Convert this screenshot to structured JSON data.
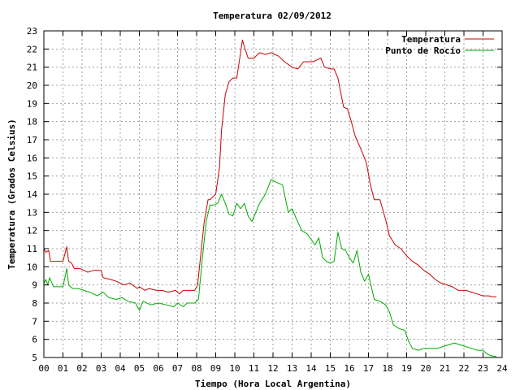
{
  "chart_data": {
    "type": "line",
    "title": "Temperatura 02/09/2012",
    "xlabel": "Tiempo (Hora Local Argentina)",
    "ylabel": "Temperatura (Grados Celsius)",
    "xlim": [
      0,
      24
    ],
    "ylim": [
      5,
      23
    ],
    "x_ticks": [
      0,
      1,
      2,
      3,
      4,
      5,
      6,
      7,
      8,
      9,
      10,
      11,
      12,
      13,
      14,
      15,
      16,
      17,
      18,
      19,
      20,
      21,
      22,
      23,
      24
    ],
    "x_tick_labels": [
      "00",
      "01",
      "02",
      "03",
      "04",
      "05",
      "06",
      "07",
      "08",
      "09",
      "10",
      "11",
      "12",
      "13",
      "14",
      "15",
      "16",
      "17",
      "18",
      "19",
      "20",
      "21",
      "22",
      "23",
      "24"
    ],
    "y_ticks": [
      5,
      6,
      7,
      8,
      9,
      10,
      11,
      12,
      13,
      14,
      15,
      16,
      17,
      18,
      19,
      20,
      21,
      22,
      23
    ],
    "grid": true,
    "legend_position": "top-right",
    "series": [
      {
        "name": "Temperatura",
        "color": "#cc0000",
        "x": [
          0,
          0.1,
          0.25,
          0.35,
          0.45,
          1.0,
          1.2,
          1.3,
          1.45,
          1.6,
          1.9,
          2.1,
          2.3,
          2.6,
          3.0,
          3.1,
          3.5,
          3.8,
          4.2,
          4.5,
          4.9,
          5.0,
          5.3,
          5.5,
          5.9,
          6.2,
          6.5,
          6.9,
          7.1,
          7.3,
          7.5,
          7.9,
          8.05,
          8.2,
          8.4,
          8.6,
          8.7,
          9.0,
          9.2,
          9.3,
          9.5,
          9.7,
          9.9,
          10.1,
          10.3,
          10.4,
          10.5,
          10.7,
          11.0,
          11.3,
          11.6,
          11.9,
          12.1,
          12.3,
          12.6,
          13.0,
          13.3,
          13.6,
          13.9,
          14.1,
          14.3,
          14.5,
          14.7,
          15.0,
          15.2,
          15.4,
          15.7,
          15.9,
          16.1,
          16.3,
          16.6,
          16.9,
          17.1,
          17.3,
          17.6,
          17.9,
          18.1,
          18.4,
          18.7,
          19.0,
          19.3,
          19.6,
          19.9,
          20.2,
          20.5,
          20.8,
          21.1,
          21.4,
          21.7,
          22.1,
          22.4,
          22.7,
          23.0,
          23.3,
          23.5,
          23.7
        ],
        "y": [
          11.0,
          10.8,
          10.9,
          10.3,
          10.3,
          10.3,
          11.1,
          10.3,
          10.2,
          9.9,
          9.9,
          9.8,
          9.7,
          9.8,
          9.8,
          9.4,
          9.3,
          9.2,
          9.0,
          9.1,
          8.8,
          8.9,
          8.7,
          8.8,
          8.7,
          8.7,
          8.6,
          8.7,
          8.5,
          8.7,
          8.7,
          8.7,
          9.0,
          10.5,
          12.5,
          13.7,
          13.7,
          14.0,
          15.5,
          17.5,
          19.5,
          20.2,
          20.4,
          20.4,
          21.8,
          22.5,
          22.1,
          21.5,
          21.5,
          21.8,
          21.7,
          21.8,
          21.7,
          21.6,
          21.3,
          21.0,
          20.9,
          21.3,
          21.3,
          21.3,
          21.4,
          21.5,
          21.0,
          20.9,
          20.9,
          20.4,
          18.8,
          18.7,
          18.0,
          17.2,
          16.5,
          15.7,
          14.5,
          13.7,
          13.7,
          12.6,
          11.7,
          11.2,
          11.0,
          10.6,
          10.3,
          10.1,
          9.8,
          9.6,
          9.3,
          9.1,
          9.0,
          8.9,
          8.7,
          8.7,
          8.6,
          8.5,
          8.4,
          8.4,
          8.35,
          8.35
        ]
      },
      {
        "name": "Punto de Rocío",
        "color": "#00aa00",
        "x": [
          0,
          0.1,
          0.2,
          0.3,
          0.5,
          1.0,
          1.2,
          1.3,
          1.5,
          1.8,
          2.1,
          2.4,
          2.8,
          3.1,
          3.4,
          3.8,
          4.1,
          4.4,
          4.8,
          5.0,
          5.2,
          5.6,
          6.0,
          6.4,
          6.8,
          7.0,
          7.3,
          7.5,
          7.9,
          8.1,
          8.3,
          8.5,
          8.7,
          8.9,
          9.1,
          9.3,
          9.5,
          9.7,
          9.9,
          10.1,
          10.3,
          10.5,
          10.7,
          10.9,
          11.1,
          11.3,
          11.6,
          11.9,
          12.1,
          12.3,
          12.5,
          12.8,
          13.0,
          13.2,
          13.5,
          13.8,
          14.0,
          14.2,
          14.4,
          14.6,
          14.8,
          15.0,
          15.2,
          15.4,
          15.6,
          15.8,
          16.0,
          16.2,
          16.4,
          16.6,
          16.8,
          17.0,
          17.3,
          17.6,
          17.9,
          18.1,
          18.3,
          18.6,
          18.9,
          19.1,
          19.3,
          19.6,
          19.9,
          20.2,
          20.6,
          20.9,
          21.2,
          21.5,
          21.8,
          22.1,
          22.4,
          22.7,
          23.0,
          23.2,
          23.4,
          23.7
        ],
        "y": [
          9.1,
          9.3,
          9.0,
          9.4,
          8.9,
          8.9,
          9.9,
          9.0,
          8.8,
          8.8,
          8.7,
          8.6,
          8.4,
          8.6,
          8.3,
          8.2,
          8.3,
          8.1,
          8.0,
          7.6,
          8.1,
          7.9,
          8.0,
          7.9,
          7.8,
          8.0,
          7.8,
          8.0,
          8.0,
          8.2,
          10.5,
          12.5,
          13.4,
          13.4,
          13.5,
          14.0,
          13.5,
          12.9,
          12.8,
          13.5,
          13.2,
          13.5,
          12.8,
          12.5,
          13.0,
          13.5,
          14.0,
          14.8,
          14.7,
          14.6,
          14.5,
          13.0,
          13.2,
          12.7,
          12.0,
          11.8,
          11.5,
          11.2,
          11.6,
          10.5,
          10.3,
          10.2,
          10.3,
          11.9,
          11.0,
          10.9,
          10.5,
          10.2,
          10.9,
          9.7,
          9.2,
          9.6,
          8.2,
          8.1,
          7.9,
          7.5,
          6.8,
          6.6,
          6.5,
          5.9,
          5.5,
          5.4,
          5.5,
          5.5,
          5.5,
          5.6,
          5.7,
          5.8,
          5.7,
          5.6,
          5.5,
          5.4,
          5.4,
          5.2,
          5.1,
          5.05
        ]
      }
    ]
  }
}
